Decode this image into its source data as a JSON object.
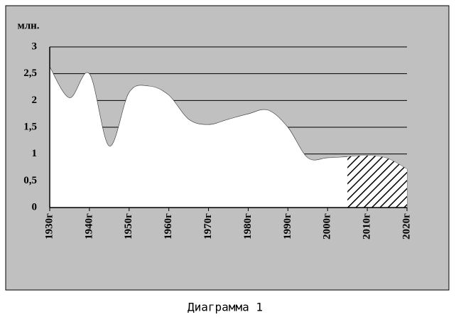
{
  "chart_data": {
    "type": "area",
    "y_label": "млн.",
    "caption": "Диаграмма 1",
    "x": [
      1930,
      1935,
      1940,
      1945,
      1950,
      1955,
      1960,
      1965,
      1970,
      1975,
      1980,
      1985,
      1990,
      1995,
      2000,
      2005,
      2010,
      2015,
      2020
    ],
    "series": [
      {
        "color": "#ffffff",
        "values": [
          2.63,
          2.05,
          2.5,
          1.15,
          2.15,
          2.27,
          2.1,
          1.65,
          1.55,
          1.65,
          1.75,
          1.82,
          1.5,
          0.93,
          0.93,
          0.95,
          0.97,
          0.92,
          0.72
        ]
      }
    ],
    "hatch_range": [
      2005,
      2020
    ],
    "background": "#c0c0c0",
    "xlim": [
      1930,
      2020
    ],
    "xticks": [
      {
        "value": 1930,
        "label": "1930г"
      },
      {
        "value": 1940,
        "label": "1940г"
      },
      {
        "value": 1950,
        "label": "1950г"
      },
      {
        "value": 1960,
        "label": "1960г"
      },
      {
        "value": 1970,
        "label": "1970г"
      },
      {
        "value": 1980,
        "label": "1980г"
      },
      {
        "value": 1990,
        "label": "1990г"
      },
      {
        "value": 2000,
        "label": "2000г"
      },
      {
        "value": 2010,
        "label": "2010г"
      },
      {
        "value": 2020,
        "label": "2020г"
      }
    ],
    "ylim": [
      0,
      3
    ],
    "yticks": [
      0,
      {
        "value": 0.5,
        "label": "0,5"
      },
      1,
      {
        "value": 1.5,
        "label": "1,5"
      },
      2,
      {
        "value": 2.5,
        "label": "2,5"
      },
      3
    ],
    "grid": true
  }
}
